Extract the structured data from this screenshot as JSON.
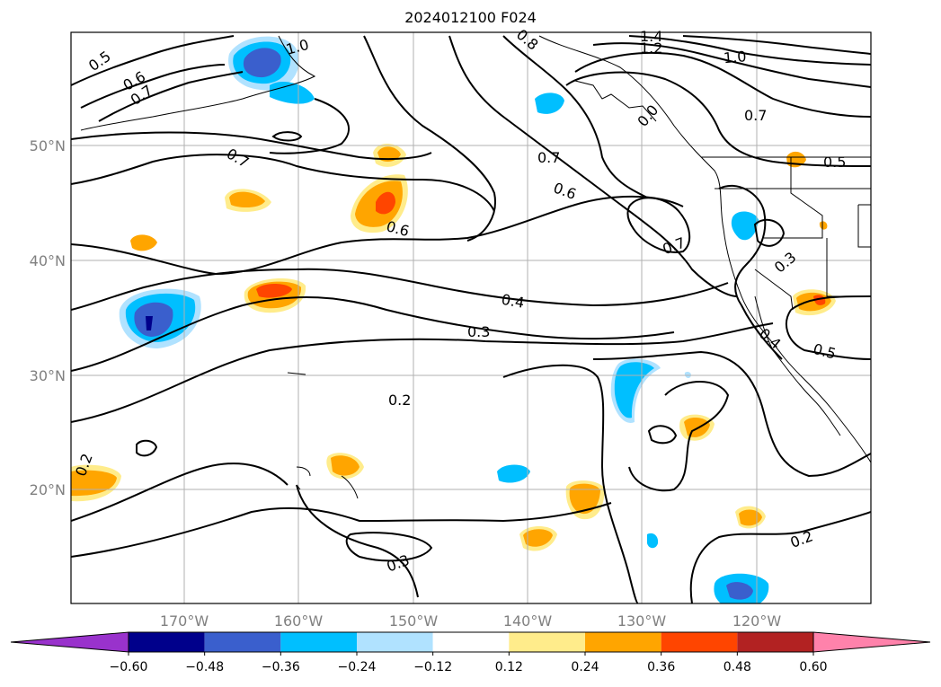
{
  "title": "2024012100 F024",
  "lat_labels": [
    "50°N",
    "40°N",
    "30°N",
    "20°N"
  ],
  "lon_labels": [
    "170°W",
    "160°W",
    "150°W",
    "140°W",
    "130°W",
    "120°W"
  ],
  "contour_labels": [
    "0.5",
    "0.6",
    "0.7",
    "1.0",
    "0.8",
    "1.4",
    "1.2",
    "1.0",
    "0.7",
    "0.0",
    "0.7",
    "0.7",
    "0.6",
    "0.7",
    "0.6",
    "0.5",
    "0.3",
    "0.4",
    "0.3",
    "0.2",
    "0.4",
    "0.5",
    "0.2",
    "0.3",
    "0.2"
  ],
  "colorbar": {
    "ticks": [
      "−0.60",
      "−0.48",
      "−0.36",
      "−0.24",
      "−0.12",
      "0.12",
      "0.24",
      "0.36",
      "0.48",
      "0.60"
    ],
    "colors": [
      "#9932cc",
      "#00008b",
      "#3a5fcd",
      "#00bfff",
      "#b0e2ff",
      "#ffffff",
      "#ffec8b",
      "#ffa500",
      "#ff4500",
      "#b22222",
      "#ff82ab"
    ]
  }
}
